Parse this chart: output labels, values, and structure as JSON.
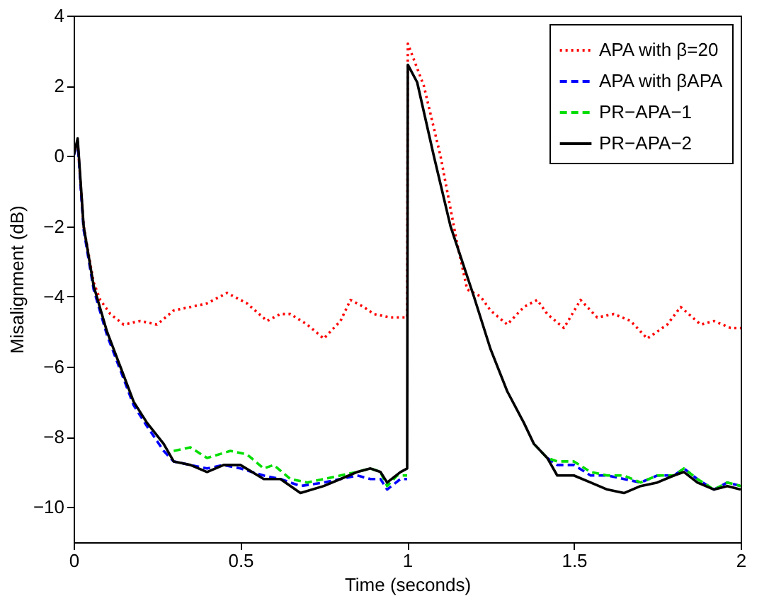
{
  "chart_data": {
    "type": "line",
    "xlabel": "Time (seconds)",
    "ylabel": "Misalignment (dB)",
    "xlim": [
      0,
      2
    ],
    "xticks": [
      {
        "value": 0,
        "label": "0"
      },
      0.5,
      {
        "value": 1,
        "label": "1"
      },
      1.5,
      {
        "value": 2,
        "label": "2"
      }
    ],
    "ylim": [
      -11,
      4
    ],
    "yticks": [
      -10,
      -8,
      -6,
      -4,
      -2,
      0,
      2,
      4
    ],
    "grid": false,
    "legend": "top right",
    "marker": "none",
    "series": [
      {
        "name": "APA with β=20",
        "color": "#ff0000",
        "line_style": "dotted",
        "x": [
          0,
          0.012,
          0.03,
          0.06,
          0.08,
          0.11,
          0.15,
          0.2,
          0.25,
          0.3,
          0.35,
          0.4,
          0.46,
          0.52,
          0.58,
          0.62,
          0.65,
          0.7,
          0.75,
          0.8,
          0.83,
          0.87,
          0.9,
          0.95,
          1.0,
          1.002,
          1.05,
          1.1,
          1.15,
          1.18,
          1.22,
          1.25,
          1.3,
          1.35,
          1.39,
          1.42,
          1.47,
          1.52,
          1.57,
          1.62,
          1.67,
          1.72,
          1.78,
          1.82,
          1.88,
          1.92,
          1.97,
          2.0
        ],
        "values": [
          0.1,
          0.4,
          -2,
          -3.6,
          -4.1,
          -4.5,
          -4.8,
          -4.7,
          -4.8,
          -4.4,
          -4.3,
          -4.2,
          -3.9,
          -4.2,
          -4.7,
          -4.5,
          -4.5,
          -4.8,
          -5.2,
          -4.7,
          -4.1,
          -4.3,
          -4.5,
          -4.6,
          -4.6,
          3.2,
          2.0,
          0,
          -2.5,
          -3.8,
          -4.0,
          -4.4,
          -4.8,
          -4.3,
          -4.1,
          -4.5,
          -4.9,
          -4.1,
          -4.6,
          -4.5,
          -4.7,
          -5.2,
          -4.8,
          -4.3,
          -4.8,
          -4.7,
          -4.9,
          -4.9
        ]
      },
      {
        "name": "APA with βAPA",
        "color": "#0000ff",
        "line_style": "dashed",
        "x": [
          0,
          0.012,
          0.03,
          0.06,
          0.1,
          0.14,
          0.18,
          0.22,
          0.27,
          0.3,
          0.35,
          0.4,
          0.45,
          0.5,
          0.57,
          0.62,
          0.68,
          0.75,
          0.8,
          0.85,
          0.89,
          0.92,
          0.94,
          0.98,
          1.0,
          1.002,
          1.03,
          1.08,
          1.13,
          1.2,
          1.25,
          1.3,
          1.35,
          1.38,
          1.42,
          1.45,
          1.5,
          1.55,
          1.6,
          1.65,
          1.7,
          1.75,
          1.8,
          1.83,
          1.87,
          1.92,
          1.96,
          2.0
        ],
        "values": [
          0,
          0.4,
          -2.1,
          -3.8,
          -5.1,
          -6.1,
          -7.1,
          -7.7,
          -8.4,
          -8.7,
          -8.8,
          -8.9,
          -8.8,
          -8.9,
          -9.1,
          -9.2,
          -9.4,
          -9.3,
          -9.2,
          -9.1,
          -9.2,
          -9.2,
          -9.5,
          -9.2,
          -9.2,
          null,
          null,
          null,
          null,
          null,
          null,
          null,
          null,
          null,
          -8.6,
          -8.8,
          -8.8,
          -9.1,
          -9.1,
          -9.2,
          -9.3,
          -9.1,
          -9.1,
          -8.9,
          -9.2,
          -9.5,
          -9.3,
          -9.4
        ]
      },
      {
        "name": "PR−APA−1",
        "color": "#00dd00",
        "line_style": "dashed",
        "x": [
          0.3,
          0.35,
          0.4,
          0.47,
          0.52,
          0.57,
          0.6,
          0.65,
          0.7,
          0.75,
          0.8,
          0.85,
          0.89,
          0.92,
          0.94,
          0.97,
          1.0,
          1.002,
          1.03,
          1.08,
          1.13,
          1.2,
          1.25,
          1.3,
          1.35,
          1.38,
          1.42,
          1.45,
          1.5,
          1.55,
          1.6,
          1.65,
          1.7,
          1.75,
          1.8,
          1.83,
          1.87,
          1.92,
          1.96,
          2.0
        ],
        "values": [
          -8.4,
          -8.3,
          -8.6,
          -8.4,
          -8.5,
          -8.9,
          -8.8,
          -9.2,
          -9.3,
          -9.2,
          -9.1,
          -9.0,
          -8.9,
          -9.0,
          -9.4,
          -9.1,
          -9.1,
          null,
          null,
          null,
          null,
          null,
          null,
          null,
          null,
          -8.2,
          -8.6,
          -8.7,
          -8.7,
          -9.0,
          -9.1,
          -9.1,
          -9.3,
          -9.1,
          -9.1,
          -8.9,
          -9.2,
          -9.5,
          -9.3,
          -9.4
        ]
      },
      {
        "name": "PR−APA−2",
        "color": "#000000",
        "line_style": "solid",
        "x": [
          0,
          0.012,
          0.03,
          0.06,
          0.1,
          0.14,
          0.18,
          0.22,
          0.27,
          0.3,
          0.35,
          0.4,
          0.45,
          0.5,
          0.57,
          0.62,
          0.68,
          0.75,
          0.8,
          0.85,
          0.89,
          0.92,
          0.94,
          0.98,
          1.0,
          1.002,
          1.03,
          1.08,
          1.13,
          1.2,
          1.25,
          1.3,
          1.35,
          1.38,
          1.42,
          1.45,
          1.5,
          1.55,
          1.6,
          1.65,
          1.7,
          1.75,
          1.8,
          1.83,
          1.87,
          1.92,
          1.96,
          2.0
        ],
        "values": [
          0,
          0.5,
          -2,
          -3.7,
          -5,
          -6,
          -7,
          -7.6,
          -8.2,
          -8.7,
          -8.8,
          -9.0,
          -8.8,
          -8.8,
          -9.2,
          -9.2,
          -9.6,
          -9.4,
          -9.2,
          -9.0,
          -8.9,
          -9.0,
          -9.3,
          -9.0,
          -8.9,
          2.6,
          2.1,
          0,
          -2,
          -4,
          -5.5,
          -6.7,
          -7.6,
          -8.2,
          -8.6,
          -9.1,
          -9.1,
          -9.3,
          -9.5,
          -9.6,
          -9.4,
          -9.3,
          -9.1,
          -9.0,
          -9.3,
          -9.5,
          -9.4,
          -9.5
        ]
      }
    ]
  }
}
